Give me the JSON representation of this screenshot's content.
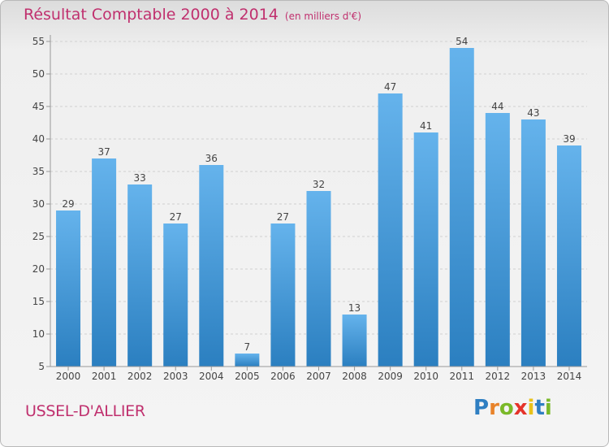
{
  "header": {
    "title": "Résultat Comptable 2000 à 2014",
    "subtitle": "(en milliers d'€)"
  },
  "footer": {
    "city": "USSEL-D'ALLIER",
    "logo": [
      "P",
      "r",
      "o",
      "x",
      "i",
      "t",
      "i"
    ],
    "logo_colors": [
      "#2f7fc2",
      "#e8832a",
      "#7ab929",
      "#e5332a",
      "#e8c21b",
      "#2f7fc2",
      "#7ab929"
    ]
  },
  "colors": {
    "bar_light": "#65b3ec",
    "bar_dark": "#2b7fc0",
    "axis": "#999999",
    "grid": "#d0d0d0",
    "text": "#444444",
    "accent": "#c0306e"
  },
  "chart_data": {
    "type": "bar",
    "title": "Résultat Comptable 2000 à 2014",
    "subtitle": "(en milliers d'€)",
    "xlabel": "",
    "ylabel": "",
    "categories": [
      "2000",
      "2001",
      "2002",
      "2003",
      "2004",
      "2005",
      "2006",
      "2007",
      "2008",
      "2009",
      "2010",
      "2011",
      "2012",
      "2013",
      "2014"
    ],
    "values": [
      29,
      37,
      33,
      27,
      36,
      7,
      27,
      32,
      13,
      47,
      41,
      54,
      44,
      43,
      39
    ],
    "yticks": [
      5,
      10,
      15,
      20,
      25,
      30,
      35,
      40,
      45,
      50,
      55
    ],
    "ylim": [
      5,
      55
    ],
    "grid": "horizontal dashed",
    "legend": "none"
  }
}
